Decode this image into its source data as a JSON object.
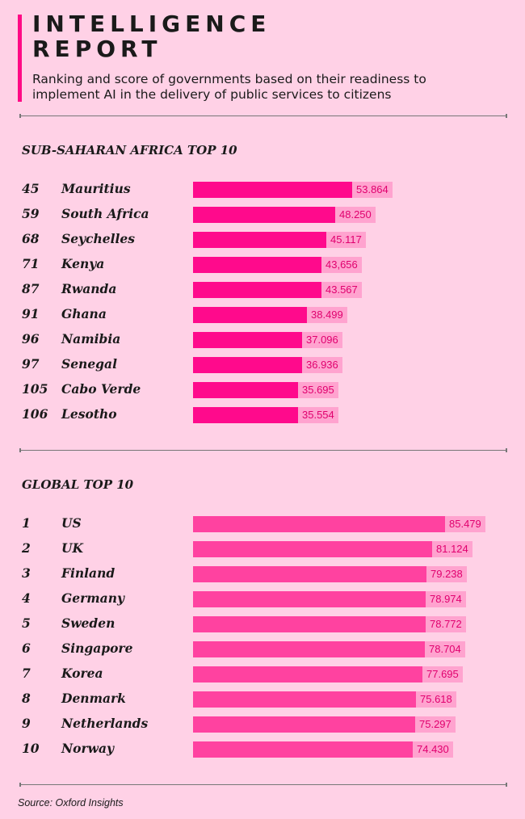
{
  "header": {
    "title": "INTELLIGENCE REPORT",
    "subtitle": "Ranking and score of governments based on their readiness to implement AI in the delivery of public services to citizens"
  },
  "colors": {
    "background": "#ffd1e6",
    "accent": "#ff0a85",
    "africa_bar": "#ff0a8c",
    "global_bar": "#ff42a0",
    "value_label_bg": "#ffa3cf",
    "value_label_text": "#e0006e"
  },
  "chart_data": [
    {
      "type": "bar",
      "orientation": "horizontal",
      "title": "SUB-SAHARAN AFRICA TOP 10",
      "ranks": [
        "45",
        "59",
        "68",
        "71",
        "87",
        "91",
        "96",
        "97",
        "105",
        "106"
      ],
      "categories": [
        "Mauritius",
        "South Africa",
        "Seychelles",
        "Kenya",
        "Rwanda",
        "Ghana",
        "Namibia",
        "Senegal",
        "Cabo Verde",
        "Lesotho"
      ],
      "values": [
        53.864,
        48.25,
        45.117,
        43.656,
        43.567,
        38.499,
        37.096,
        36.936,
        35.695,
        35.554
      ],
      "labels": [
        "53.864",
        "48.250",
        "45.117",
        "43,656",
        "43.567",
        "38.499",
        "37.096",
        "36.936",
        "35.695",
        "35.554"
      ]
    },
    {
      "type": "bar",
      "orientation": "horizontal",
      "title": "GLOBAL TOP 10",
      "ranks": [
        "1",
        "2",
        "3",
        "4",
        "5",
        "6",
        "7",
        "8",
        "9",
        "10"
      ],
      "categories": [
        "US",
        "UK",
        "Finland",
        "Germany",
        "Sweden",
        "Singapore",
        "Korea",
        "Denmark",
        "Netherlands",
        "Norway"
      ],
      "values": [
        85.479,
        81.124,
        79.238,
        78.974,
        78.772,
        78.704,
        77.695,
        75.618,
        75.297,
        74.43
      ],
      "labels": [
        "85.479",
        "81.124",
        "79.238",
        "78.974",
        "78.772",
        "78.704",
        "77.695",
        "75.618",
        "75.297",
        "74.430"
      ]
    }
  ],
  "footer": {
    "source": "Source: Oxford Insights"
  }
}
